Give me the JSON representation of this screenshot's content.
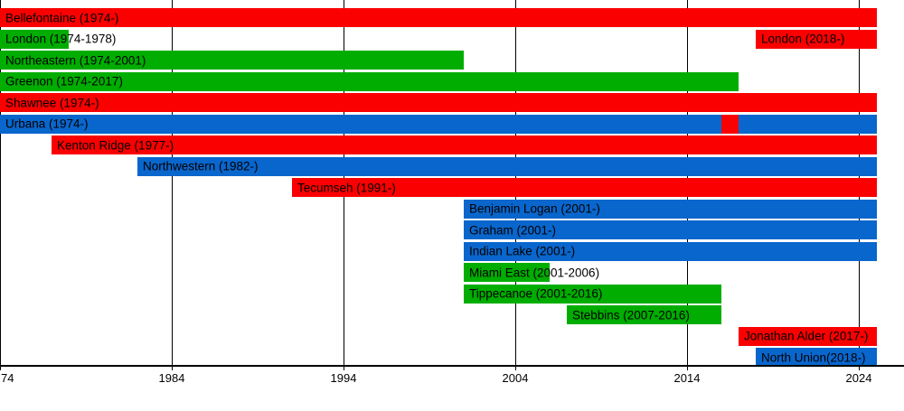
{
  "chart_data": {
    "type": "bar",
    "subtype": "horizontal-timeline-gantt",
    "title": "",
    "xlabel": "",
    "ylabel": "",
    "legend": "none",
    "grid": "vertical-gridlines-behind-bars",
    "present_value": 2025.05,
    "x_axis": {
      "min": 1974,
      "max": 2025.1,
      "ticks": [
        {
          "year": 1974,
          "label": "74",
          "align": "left-clipped"
        },
        {
          "year": 1984,
          "label": "1984",
          "align": "center"
        },
        {
          "year": 1994,
          "label": "1994",
          "align": "center"
        },
        {
          "year": 2004,
          "label": "2004",
          "align": "center"
        },
        {
          "year": 2014,
          "label": "2014",
          "align": "center"
        },
        {
          "year": 2024,
          "label": "2024",
          "align": "center"
        }
      ]
    },
    "colors": {
      "red": "#FA0000",
      "green": "#00AD00",
      "blue": "#0966CC",
      "text": "#000000",
      "axis": "#000000",
      "background": "#FFFFFF"
    },
    "rows": [
      {
        "bars": [
          {
            "label": "Bellefontaine (1974-)",
            "start": 1974,
            "end": "present",
            "color": "red"
          }
        ]
      },
      {
        "bars": [
          {
            "label": "London (1974-1978)",
            "start": 1974,
            "end": 1978,
            "color": "green"
          },
          {
            "label": "London (2018-)",
            "start": 2018,
            "end": "present",
            "color": "red"
          }
        ]
      },
      {
        "bars": [
          {
            "label": "Northeastern (1974-2001)",
            "start": 1974,
            "end": 2001,
            "color": "green"
          }
        ]
      },
      {
        "bars": [
          {
            "label": "Greenon (1974-2017)",
            "start": 1974,
            "end": 2017,
            "color": "green"
          }
        ]
      },
      {
        "bars": [
          {
            "label": "Shawnee (1974-)",
            "start": 1974,
            "end": "present",
            "color": "red"
          }
        ]
      },
      {
        "bars": [
          {
            "label": "Urbana (1974-)",
            "start": 1974,
            "end": "present",
            "color": "blue"
          }
        ],
        "overlays": [
          {
            "start": 2016,
            "end": 2017,
            "color": "red"
          }
        ]
      },
      {
        "bars": [
          {
            "label": "Kenton Ridge (1977-)",
            "start": 1977,
            "end": "present",
            "color": "red"
          }
        ]
      },
      {
        "bars": [
          {
            "label": "Northwestern (1982-)",
            "start": 1982,
            "end": "present",
            "color": "blue"
          }
        ]
      },
      {
        "bars": [
          {
            "label": "Tecumseh (1991-)",
            "start": 1991,
            "end": "present",
            "color": "red"
          }
        ]
      },
      {
        "bars": [
          {
            "label": "Benjamin Logan (2001-)",
            "start": 2001,
            "end": "present",
            "color": "blue"
          }
        ]
      },
      {
        "bars": [
          {
            "label": "Graham (2001-)",
            "start": 2001,
            "end": "present",
            "color": "blue"
          }
        ]
      },
      {
        "bars": [
          {
            "label": "Indian Lake (2001-)",
            "start": 2001,
            "end": "present",
            "color": "blue"
          }
        ]
      },
      {
        "bars": [
          {
            "label": "Miami East (2001-2006)",
            "start": 2001,
            "end": 2006,
            "color": "green"
          }
        ]
      },
      {
        "bars": [
          {
            "label": "Tippecanoe (2001-2016)",
            "start": 2001,
            "end": 2016,
            "color": "green"
          }
        ]
      },
      {
        "bars": [
          {
            "label": "Stebbins (2007-2016)",
            "start": 2007,
            "end": 2016,
            "color": "green"
          }
        ]
      },
      {
        "bars": [
          {
            "label": "Jonathan Alder (2017-)",
            "start": 2017,
            "end": "present",
            "color": "red"
          }
        ]
      },
      {
        "bars": [
          {
            "label": "North Union(2018-)",
            "start": 2018,
            "end": "present",
            "color": "blue"
          }
        ]
      }
    ]
  }
}
